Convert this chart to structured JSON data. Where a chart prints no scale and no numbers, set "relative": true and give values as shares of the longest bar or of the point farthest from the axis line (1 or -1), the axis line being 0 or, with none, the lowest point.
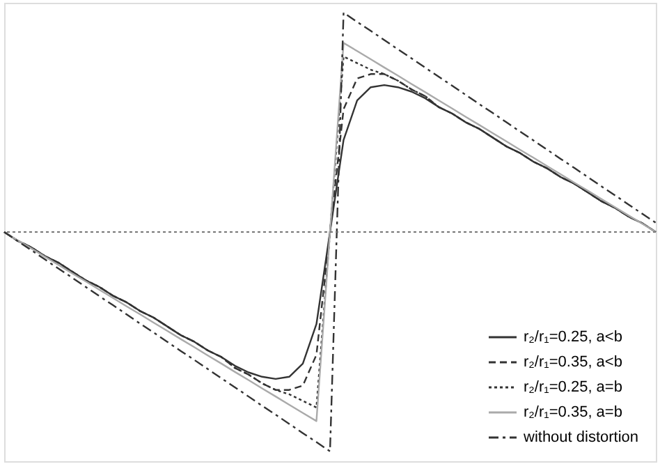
{
  "chart_data": {
    "type": "line",
    "relative": true,
    "legend": "bottom right",
    "categories": [
      null,
      null,
      null,
      null,
      null,
      null,
      null,
      null,
      null,
      null,
      null,
      null,
      null,
      null,
      null,
      null,
      null,
      null,
      null,
      null,
      null,
      null,
      null,
      null,
      null,
      null,
      null,
      null,
      null,
      null,
      null,
      null,
      null,
      null,
      null,
      null,
      null,
      null,
      null,
      null,
      null,
      null,
      null,
      null,
      null,
      null,
      null,
      null,
      null
    ],
    "ref_lines": [
      {
        "axis": "y",
        "value": 0,
        "color": "#777777",
        "line_style": "dotted"
      }
    ],
    "series": [
      {
        "name": "r₂/r₁=0.25, a<b",
        "color": "#333333",
        "line_style": "solid",
        "values": [
          0,
          -0.04,
          -0.07,
          -0.11,
          -0.14,
          -0.18,
          -0.22,
          -0.25,
          -0.29,
          -0.32,
          -0.36,
          -0.39,
          -0.43,
          -0.47,
          -0.5,
          -0.54,
          -0.57,
          -0.61,
          -0.64,
          -0.66,
          -0.67,
          -0.66,
          -0.6,
          -0.42,
          0,
          0.42,
          0.6,
          0.66,
          0.67,
          0.66,
          0.64,
          0.61,
          0.57,
          0.54,
          0.5,
          0.47,
          0.43,
          0.39,
          0.36,
          0.32,
          0.29,
          0.25,
          0.22,
          0.18,
          0.14,
          0.11,
          0.07,
          0.04,
          0
        ]
      },
      {
        "name": "r₂/r₁=0.35, a<b",
        "color": "#333333",
        "line_style": "dashed",
        "values": [
          0,
          -0.04,
          -0.07,
          -0.11,
          -0.14,
          -0.18,
          -0.22,
          -0.25,
          -0.29,
          -0.32,
          -0.36,
          -0.39,
          -0.43,
          -0.47,
          -0.5,
          -0.54,
          -0.57,
          -0.62,
          -0.65,
          -0.69,
          -0.72,
          -0.72,
          -0.7,
          -0.56,
          0,
          0.56,
          0.7,
          0.72,
          0.72,
          0.69,
          0.65,
          0.62,
          0.57,
          0.54,
          0.5,
          0.47,
          0.43,
          0.39,
          0.36,
          0.32,
          0.29,
          0.25,
          0.22,
          0.18,
          0.14,
          0.11,
          0.07,
          0.04,
          0
        ]
      },
      {
        "name": "r₂/r₁=0.25, a=b",
        "color": "#333333",
        "line_style": "dotted",
        "values": [
          0,
          -0.04,
          -0.07,
          -0.11,
          -0.14,
          -0.18,
          -0.22,
          -0.25,
          -0.29,
          -0.32,
          -0.36,
          -0.39,
          -0.43,
          -0.47,
          -0.5,
          -0.54,
          -0.57,
          -0.62,
          -0.65,
          -0.69,
          -0.72,
          -0.74,
          -0.77,
          -0.8,
          0,
          0.8,
          0.77,
          0.74,
          0.72,
          0.69,
          0.65,
          0.62,
          0.57,
          0.54,
          0.5,
          0.47,
          0.43,
          0.39,
          0.36,
          0.32,
          0.29,
          0.25,
          0.22,
          0.18,
          0.14,
          0.11,
          0.07,
          0.04,
          0
        ]
      },
      {
        "name": "r₂/r₁=0.35, a=b",
        "color": "#aaaaaa",
        "line_style": "solid",
        "values": [
          0,
          -0.038,
          -0.075,
          -0.113,
          -0.15,
          -0.188,
          -0.225,
          -0.263,
          -0.3,
          -0.338,
          -0.375,
          -0.413,
          -0.45,
          -0.488,
          -0.525,
          -0.563,
          -0.6,
          -0.638,
          -0.675,
          -0.713,
          -0.75,
          -0.788,
          -0.825,
          -0.862,
          0,
          0.862,
          0.825,
          0.788,
          0.75,
          0.713,
          0.675,
          0.638,
          0.6,
          0.563,
          0.525,
          0.488,
          0.45,
          0.413,
          0.375,
          0.338,
          0.3,
          0.263,
          0.225,
          0.188,
          0.15,
          0.113,
          0.075,
          0.038,
          0
        ]
      },
      {
        "name": "without distortion",
        "color": "#333333",
        "line_style": "dashdot",
        "values": [
          0,
          -0.042,
          -0.083,
          -0.125,
          -0.167,
          -0.208,
          -0.25,
          -0.292,
          -0.333,
          -0.375,
          -0.417,
          -0.458,
          -0.5,
          -0.542,
          -0.583,
          -0.625,
          -0.667,
          -0.708,
          -0.75,
          -0.792,
          -0.833,
          -0.875,
          -0.917,
          -0.958,
          -1,
          1,
          0.958,
          0.917,
          0.875,
          0.833,
          0.792,
          0.75,
          0.708,
          0.667,
          0.625,
          0.583,
          0.542,
          0.5,
          0.458,
          0.417,
          0.375,
          0.333,
          0.292,
          0.25,
          0.208,
          0.167,
          0.125,
          0.083,
          0.042
        ]
      }
    ]
  }
}
